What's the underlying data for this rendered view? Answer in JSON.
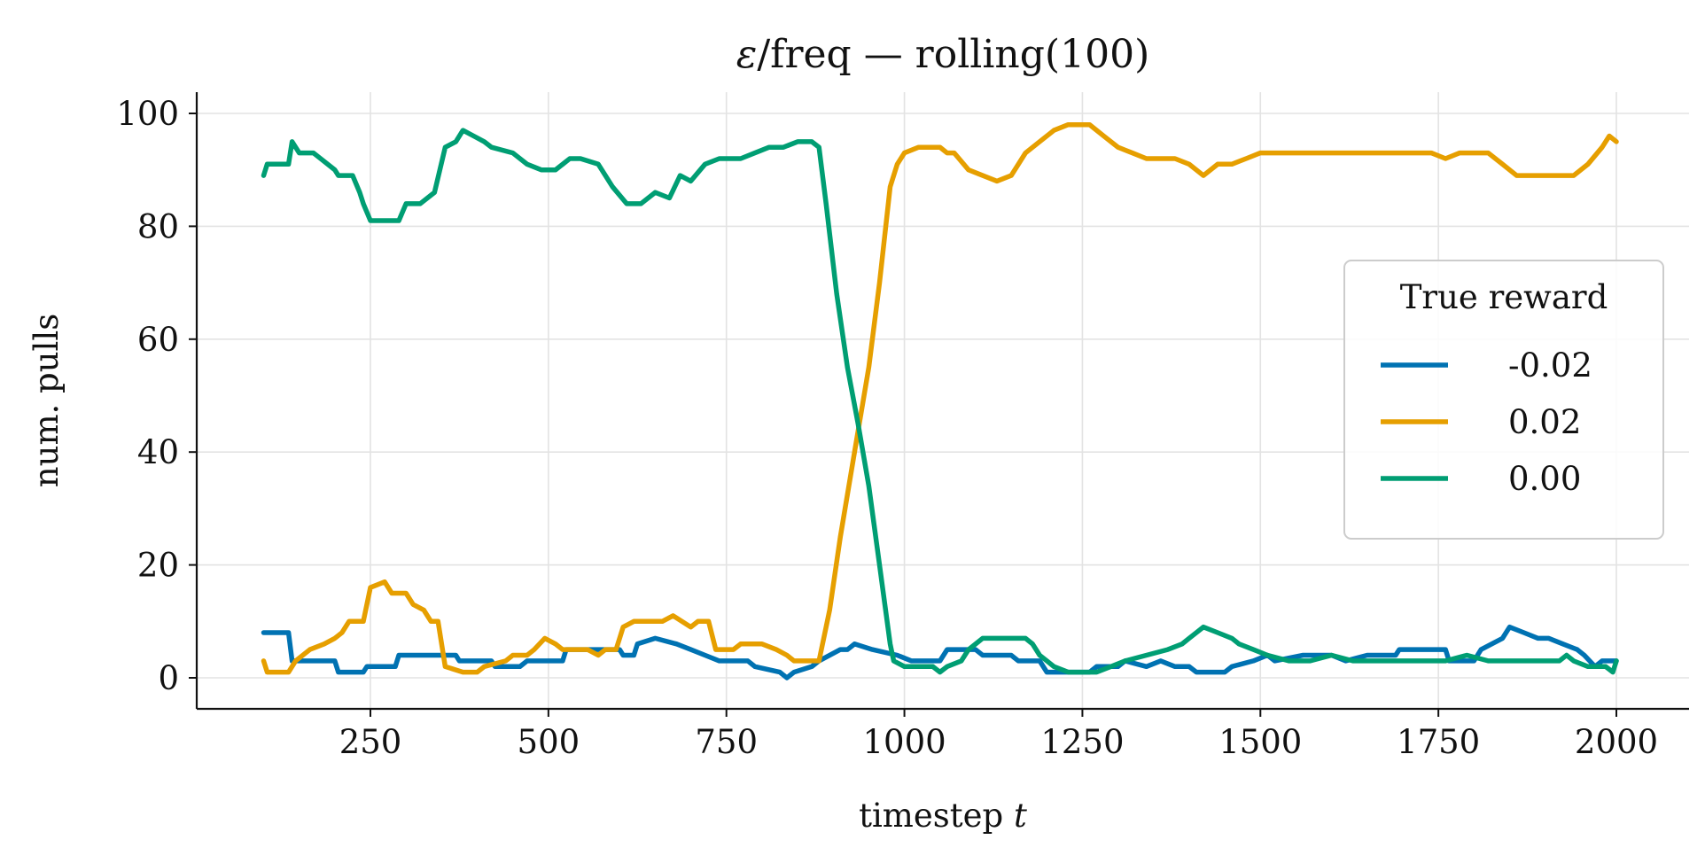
{
  "chart_data": {
    "type": "line",
    "title_prefix": "ε",
    "title_rest": "/freq — rolling(100)",
    "xlabel_text": "timestep ",
    "xlabel_var": "t",
    "ylabel": "num. pulls",
    "xlim": [
      0,
      2050
    ],
    "ylim": [
      -5,
      104
    ],
    "xticks": [
      250,
      500,
      750,
      1000,
      1250,
      1500,
      1750,
      2000
    ],
    "yticks": [
      0,
      20,
      40,
      60,
      80,
      100
    ],
    "grid": true,
    "legend": {
      "title": "True reward",
      "position": "right"
    },
    "series": [
      {
        "name": "-0.02",
        "color": "#0072B2",
        "points": [
          [
            100,
            8
          ],
          [
            135,
            8
          ],
          [
            140,
            3
          ],
          [
            200,
            3
          ],
          [
            205,
            1
          ],
          [
            240,
            1
          ],
          [
            245,
            2
          ],
          [
            285,
            2
          ],
          [
            290,
            4
          ],
          [
            370,
            4
          ],
          [
            375,
            3
          ],
          [
            420,
            3
          ],
          [
            425,
            2
          ],
          [
            460,
            2
          ],
          [
            470,
            3
          ],
          [
            520,
            3
          ],
          [
            525,
            5
          ],
          [
            600,
            5
          ],
          [
            605,
            4
          ],
          [
            620,
            4
          ],
          [
            625,
            6
          ],
          [
            650,
            7
          ],
          [
            680,
            6
          ],
          [
            700,
            5
          ],
          [
            720,
            4
          ],
          [
            740,
            3
          ],
          [
            780,
            3
          ],
          [
            790,
            2
          ],
          [
            825,
            1
          ],
          [
            835,
            0
          ],
          [
            845,
            1
          ],
          [
            870,
            2
          ],
          [
            880,
            3
          ],
          [
            910,
            5
          ],
          [
            920,
            5
          ],
          [
            930,
            6
          ],
          [
            955,
            5
          ],
          [
            990,
            4
          ],
          [
            1010,
            3
          ],
          [
            1050,
            3
          ],
          [
            1060,
            5
          ],
          [
            1100,
            5
          ],
          [
            1110,
            4
          ],
          [
            1150,
            4
          ],
          [
            1160,
            3
          ],
          [
            1190,
            3
          ],
          [
            1200,
            1
          ],
          [
            1260,
            1
          ],
          [
            1270,
            2
          ],
          [
            1300,
            2
          ],
          [
            1310,
            3
          ],
          [
            1340,
            2
          ],
          [
            1360,
            3
          ],
          [
            1380,
            2
          ],
          [
            1400,
            2
          ],
          [
            1410,
            1
          ],
          [
            1450,
            1
          ],
          [
            1460,
            2
          ],
          [
            1490,
            3
          ],
          [
            1510,
            4
          ],
          [
            1520,
            3
          ],
          [
            1560,
            4
          ],
          [
            1600,
            4
          ],
          [
            1620,
            3
          ],
          [
            1650,
            4
          ],
          [
            1690,
            4
          ],
          [
            1695,
            5
          ],
          [
            1760,
            5
          ],
          [
            1765,
            3
          ],
          [
            1800,
            3
          ],
          [
            1810,
            5
          ],
          [
            1840,
            7
          ],
          [
            1850,
            9
          ],
          [
            1870,
            8
          ],
          [
            1890,
            7
          ],
          [
            1905,
            7
          ],
          [
            1925,
            6
          ],
          [
            1945,
            5
          ],
          [
            1955,
            4
          ],
          [
            1970,
            2
          ],
          [
            1980,
            3
          ],
          [
            2000,
            3
          ]
        ]
      },
      {
        "name": "0.02",
        "color": "#E69F00",
        "points": [
          [
            100,
            3
          ],
          [
            105,
            1
          ],
          [
            135,
            1
          ],
          [
            145,
            3
          ],
          [
            165,
            5
          ],
          [
            185,
            6
          ],
          [
            200,
            7
          ],
          [
            210,
            8
          ],
          [
            220,
            10
          ],
          [
            240,
            10
          ],
          [
            250,
            16
          ],
          [
            270,
            17
          ],
          [
            280,
            15
          ],
          [
            300,
            15
          ],
          [
            310,
            13
          ],
          [
            325,
            12
          ],
          [
            335,
            10
          ],
          [
            345,
            10
          ],
          [
            355,
            2
          ],
          [
            380,
            1
          ],
          [
            400,
            1
          ],
          [
            410,
            2
          ],
          [
            440,
            3
          ],
          [
            450,
            4
          ],
          [
            470,
            4
          ],
          [
            480,
            5
          ],
          [
            495,
            7
          ],
          [
            510,
            6
          ],
          [
            520,
            5
          ],
          [
            555,
            5
          ],
          [
            570,
            4
          ],
          [
            580,
            5
          ],
          [
            595,
            5
          ],
          [
            600,
            7
          ],
          [
            605,
            9
          ],
          [
            620,
            10
          ],
          [
            660,
            10
          ],
          [
            675,
            11
          ],
          [
            700,
            9
          ],
          [
            710,
            10
          ],
          [
            725,
            10
          ],
          [
            735,
            5
          ],
          [
            760,
            5
          ],
          [
            770,
            6
          ],
          [
            800,
            6
          ],
          [
            820,
            5
          ],
          [
            835,
            4
          ],
          [
            845,
            3
          ],
          [
            880,
            3
          ],
          [
            895,
            12
          ],
          [
            910,
            25
          ],
          [
            930,
            40
          ],
          [
            950,
            55
          ],
          [
            965,
            70
          ],
          [
            980,
            87
          ],
          [
            990,
            91
          ],
          [
            1000,
            93
          ],
          [
            1020,
            94
          ],
          [
            1050,
            94
          ],
          [
            1060,
            93
          ],
          [
            1070,
            93
          ],
          [
            1090,
            90
          ],
          [
            1110,
            89
          ],
          [
            1130,
            88
          ],
          [
            1150,
            89
          ],
          [
            1170,
            93
          ],
          [
            1190,
            95
          ],
          [
            1210,
            97
          ],
          [
            1230,
            98
          ],
          [
            1260,
            98
          ],
          [
            1280,
            96
          ],
          [
            1300,
            94
          ],
          [
            1320,
            93
          ],
          [
            1340,
            92
          ],
          [
            1360,
            92
          ],
          [
            1380,
            92
          ],
          [
            1400,
            91
          ],
          [
            1420,
            89
          ],
          [
            1440,
            91
          ],
          [
            1460,
            91
          ],
          [
            1480,
            92
          ],
          [
            1500,
            93
          ],
          [
            1520,
            93
          ],
          [
            1540,
            93
          ],
          [
            1560,
            93
          ],
          [
            1580,
            93
          ],
          [
            1600,
            93
          ],
          [
            1620,
            93
          ],
          [
            1640,
            93
          ],
          [
            1660,
            93
          ],
          [
            1680,
            93
          ],
          [
            1700,
            93
          ],
          [
            1720,
            93
          ],
          [
            1740,
            93
          ],
          [
            1760,
            92
          ],
          [
            1780,
            93
          ],
          [
            1800,
            93
          ],
          [
            1820,
            93
          ],
          [
            1840,
            91
          ],
          [
            1860,
            89
          ],
          [
            1880,
            89
          ],
          [
            1900,
            89
          ],
          [
            1920,
            89
          ],
          [
            1940,
            89
          ],
          [
            1960,
            91
          ],
          [
            1980,
            94
          ],
          [
            1990,
            96
          ],
          [
            2000,
            95
          ]
        ]
      },
      {
        "name": "0.00",
        "color": "#009E73",
        "points": [
          [
            100,
            89
          ],
          [
            105,
            91
          ],
          [
            135,
            91
          ],
          [
            140,
            95
          ],
          [
            150,
            93
          ],
          [
            170,
            93
          ],
          [
            180,
            92
          ],
          [
            200,
            90
          ],
          [
            205,
            89
          ],
          [
            225,
            89
          ],
          [
            235,
            86
          ],
          [
            240,
            84
          ],
          [
            250,
            81
          ],
          [
            270,
            81
          ],
          [
            290,
            81
          ],
          [
            300,
            84
          ],
          [
            320,
            84
          ],
          [
            340,
            86
          ],
          [
            355,
            94
          ],
          [
            370,
            95
          ],
          [
            380,
            97
          ],
          [
            395,
            96
          ],
          [
            410,
            95
          ],
          [
            420,
            94
          ],
          [
            450,
            93
          ],
          [
            470,
            91
          ],
          [
            490,
            90
          ],
          [
            510,
            90
          ],
          [
            530,
            92
          ],
          [
            545,
            92
          ],
          [
            570,
            91
          ],
          [
            590,
            87
          ],
          [
            610,
            84
          ],
          [
            630,
            84
          ],
          [
            650,
            86
          ],
          [
            670,
            85
          ],
          [
            685,
            89
          ],
          [
            700,
            88
          ],
          [
            720,
            91
          ],
          [
            740,
            92
          ],
          [
            770,
            92
          ],
          [
            790,
            93
          ],
          [
            810,
            94
          ],
          [
            830,
            94
          ],
          [
            850,
            95
          ],
          [
            870,
            95
          ],
          [
            880,
            94
          ],
          [
            890,
            84
          ],
          [
            905,
            68
          ],
          [
            920,
            55
          ],
          [
            935,
            45
          ],
          [
            950,
            34
          ],
          [
            965,
            20
          ],
          [
            980,
            6
          ],
          [
            985,
            3
          ],
          [
            1000,
            2
          ],
          [
            1040,
            2
          ],
          [
            1050,
            1
          ],
          [
            1060,
            2
          ],
          [
            1080,
            3
          ],
          [
            1090,
            5
          ],
          [
            1100,
            6
          ],
          [
            1110,
            7
          ],
          [
            1170,
            7
          ],
          [
            1180,
            6
          ],
          [
            1190,
            4
          ],
          [
            1200,
            3
          ],
          [
            1210,
            2
          ],
          [
            1230,
            1
          ],
          [
            1270,
            1
          ],
          [
            1290,
            2
          ],
          [
            1310,
            3
          ],
          [
            1340,
            4
          ],
          [
            1370,
            5
          ],
          [
            1390,
            6
          ],
          [
            1400,
            7
          ],
          [
            1410,
            8
          ],
          [
            1420,
            9
          ],
          [
            1440,
            8
          ],
          [
            1460,
            7
          ],
          [
            1470,
            6
          ],
          [
            1490,
            5
          ],
          [
            1510,
            4
          ],
          [
            1540,
            3
          ],
          [
            1570,
            3
          ],
          [
            1600,
            4
          ],
          [
            1630,
            3
          ],
          [
            1660,
            3
          ],
          [
            1700,
            3
          ],
          [
            1730,
            3
          ],
          [
            1760,
            3
          ],
          [
            1790,
            4
          ],
          [
            1820,
            3
          ],
          [
            1850,
            3
          ],
          [
            1880,
            3
          ],
          [
            1900,
            3
          ],
          [
            1920,
            3
          ],
          [
            1930,
            4
          ],
          [
            1940,
            3
          ],
          [
            1960,
            2
          ],
          [
            1985,
            2
          ],
          [
            1995,
            1
          ],
          [
            2000,
            3
          ]
        ]
      }
    ]
  }
}
